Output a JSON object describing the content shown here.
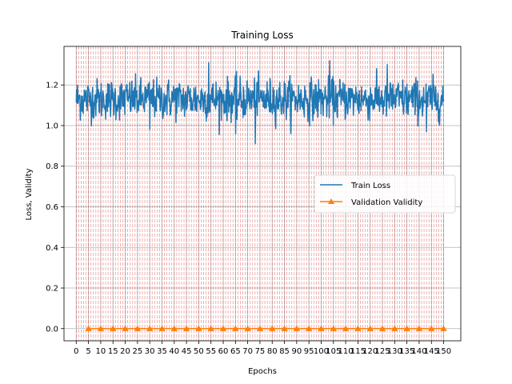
{
  "chart_data": {
    "type": "line",
    "title": "Training Loss",
    "xlabel": "Epochs",
    "ylabel": "Loss, Validity",
    "xlim": [
      -5,
      157
    ],
    "ylim": [
      -0.06,
      1.39
    ],
    "x_ticks": [
      0,
      5,
      10,
      15,
      20,
      25,
      30,
      35,
      40,
      45,
      50,
      55,
      60,
      65,
      70,
      75,
      80,
      85,
      90,
      95,
      100,
      105,
      110,
      115,
      120,
      125,
      130,
      135,
      140,
      145,
      150
    ],
    "x_tick_labels": [
      "0",
      "5",
      "10",
      "15",
      "20",
      "25",
      "30",
      "35",
      "40",
      "45",
      "50",
      "55",
      "60",
      "65",
      "70",
      "75",
      "80",
      "85",
      "90",
      "95",
      "100",
      "105",
      "110",
      "115",
      "120",
      "125",
      "130",
      "135",
      "140",
      "145",
      "150"
    ],
    "y_ticks": [
      0.0,
      0.2,
      0.4,
      0.6,
      0.8,
      1.0,
      1.2
    ],
    "y_tick_labels": [
      "0.0",
      "0.2",
      "0.4",
      "0.6",
      "0.8",
      "1.0",
      "1.2"
    ],
    "grid": true,
    "legend_position": "center-right",
    "series": [
      {
        "name": "Train Loss",
        "color": "#1f77b4",
        "marker": "none",
        "x_range": [
          0,
          150
        ],
        "n_points": 900,
        "mean": 1.13,
        "spread": 0.05,
        "min": 0.91,
        "max": 1.32,
        "notable_points": [
          {
            "x": 73.0,
            "y": 0.91
          },
          {
            "x": 103.5,
            "y": 1.32
          },
          {
            "x": 54.0,
            "y": 1.31
          },
          {
            "x": 127.0,
            "y": 1.3
          },
          {
            "x": 65.0,
            "y": 0.96
          },
          {
            "x": 143.0,
            "y": 0.97
          },
          {
            "x": 30.0,
            "y": 0.98
          }
        ]
      },
      {
        "name": "Validation Validity",
        "color": "#ff7f0e",
        "marker": "triangle",
        "x": [
          5,
          10,
          15,
          20,
          25,
          30,
          35,
          40,
          45,
          50,
          55,
          60,
          65,
          70,
          75,
          80,
          85,
          90,
          95,
          100,
          105,
          110,
          115,
          120,
          125,
          130,
          135,
          140,
          145,
          150
        ],
        "values": [
          0,
          0,
          0,
          0,
          0,
          0,
          0,
          0,
          0,
          0,
          0,
          0,
          0,
          0,
          0,
          0,
          0,
          0,
          0,
          0,
          0,
          0,
          0,
          0,
          0,
          0,
          0,
          0,
          0,
          0
        ]
      }
    ],
    "epoch_markers": {
      "color": "#d62728",
      "step": 1,
      "range": [
        0,
        150
      ]
    }
  }
}
